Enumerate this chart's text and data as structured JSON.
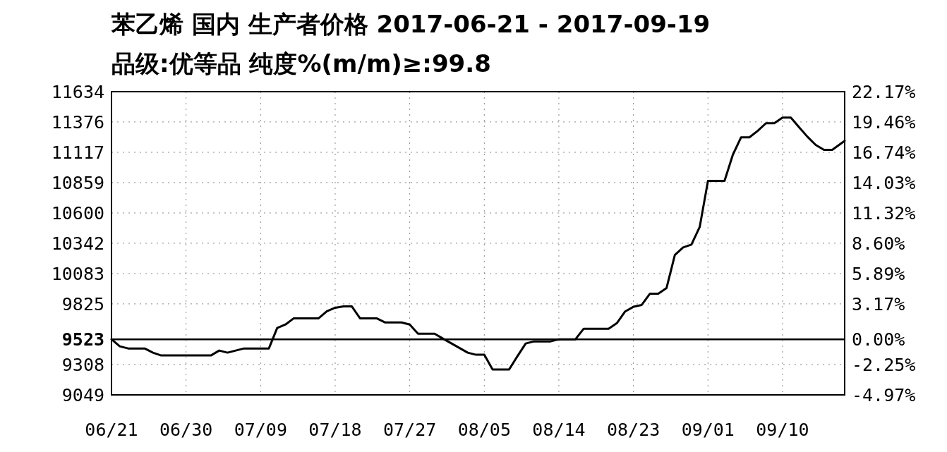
{
  "chart_data": {
    "type": "line",
    "title": "苯乙烯 国内 生产者价格 2017-06-21 - 2017-09-19",
    "subtitle": "品级:优等品 纯度%(m/m)≥:99.8",
    "x": [
      "2017-06-21",
      "2017-06-22",
      "2017-06-23",
      "2017-06-25",
      "2017-06-26",
      "2017-06-27",
      "2017-07-03",
      "2017-07-04",
      "2017-07-05",
      "2017-07-06",
      "2017-07-07",
      "2017-07-10",
      "2017-07-11",
      "2017-07-12",
      "2017-07-13",
      "2017-07-16",
      "2017-07-17",
      "2017-07-18",
      "2017-07-19",
      "2017-07-20",
      "2017-07-21",
      "2017-07-23",
      "2017-07-24",
      "2017-07-26",
      "2017-07-27",
      "2017-07-28",
      "2017-07-30",
      "2017-07-31",
      "2017-08-03",
      "2017-08-04",
      "2017-08-05",
      "2017-08-06",
      "2017-08-08",
      "2017-08-09",
      "2017-08-10",
      "2017-08-11",
      "2017-08-13",
      "2017-08-14",
      "2017-08-16",
      "2017-08-17",
      "2017-08-20",
      "2017-08-21",
      "2017-08-22",
      "2017-08-23",
      "2017-08-24",
      "2017-08-25",
      "2017-08-26",
      "2017-08-27",
      "2017-08-28",
      "2017-08-29",
      "2017-08-30",
      "2017-08-31",
      "2017-09-01",
      "2017-09-03",
      "2017-09-04",
      "2017-09-05",
      "2017-09-06",
      "2017-09-07",
      "2017-09-08",
      "2017-09-09",
      "2017-09-10",
      "2017-09-11",
      "2017-09-12",
      "2017-09-13",
      "2017-09-14",
      "2017-09-15",
      "2017-09-16",
      "2017-09-17T12:00"
    ],
    "series": [
      {
        "color": "#000000",
        "values": [
          9523,
          9463,
          9445,
          9445,
          9409,
          9385,
          9385,
          9427,
          9409,
          9427,
          9445,
          9445,
          9619,
          9649,
          9702,
          9702,
          9762,
          9792,
          9804,
          9804,
          9702,
          9702,
          9667,
          9667,
          9649,
          9571,
          9571,
          9529,
          9409,
          9391,
          9391,
          9266,
          9266,
          9379,
          9487,
          9505,
          9505,
          9523,
          9523,
          9613,
          9613,
          9660,
          9760,
          9800,
          9816,
          9912,
          9912,
          9960,
          10241,
          10306,
          10330,
          10480,
          10874,
          10874,
          11096,
          11245,
          11245,
          11300,
          11365,
          11365,
          11413,
          11413,
          11330,
          11250,
          11180,
          11138,
          11138,
          11215
        ]
      }
    ],
    "xlim": [
      "2017-06-21",
      "2017-09-17T12:00"
    ],
    "xticks": [
      {
        "value": "2017-06-21",
        "label": "06/21"
      },
      {
        "value": "2017-06-30",
        "label": "06/30"
      },
      {
        "value": "2017-07-09",
        "label": "07/09"
      },
      {
        "value": "2017-07-18",
        "label": "07/18"
      },
      {
        "value": "2017-07-27",
        "label": "07/27"
      },
      {
        "value": "2017-08-05",
        "label": "08/05"
      },
      {
        "value": "2017-08-14",
        "label": "08/14"
      },
      {
        "value": "2017-08-23",
        "label": "08/23"
      },
      {
        "value": "2017-09-01",
        "label": "09/01"
      },
      {
        "value": "2017-09-10",
        "label": "09/10"
      }
    ],
    "ylim": [
      9049,
      11634
    ],
    "yticks": [
      11634,
      11376,
      11117,
      10859,
      10600,
      10342,
      10083,
      9825,
      9523,
      9308,
      9049
    ],
    "y2lim": [
      -4.97,
      22.17
    ],
    "y2ticks": [
      {
        "value": 22.17,
        "label": "22.17%"
      },
      {
        "value": 19.46,
        "label": "19.46%"
      },
      {
        "value": 16.74,
        "label": "16.74%"
      },
      {
        "value": 14.03,
        "label": "14.03%"
      },
      {
        "value": 11.32,
        "label": "11.32%"
      },
      {
        "value": 8.6,
        "label": "8.60%"
      },
      {
        "value": 5.89,
        "label": "5.89%"
      },
      {
        "value": 3.17,
        "label": "3.17%"
      },
      {
        "value": 0,
        "label": "0.00%"
      },
      {
        "value": -2.25,
        "label": "-2.25%"
      },
      {
        "value": -4.97,
        "label": "-4.97%"
      }
    ],
    "ref_lines": [
      {
        "axis": "y",
        "value": 9523,
        "color": "#000000"
      }
    ],
    "grid": true,
    "line_style": "solid"
  }
}
